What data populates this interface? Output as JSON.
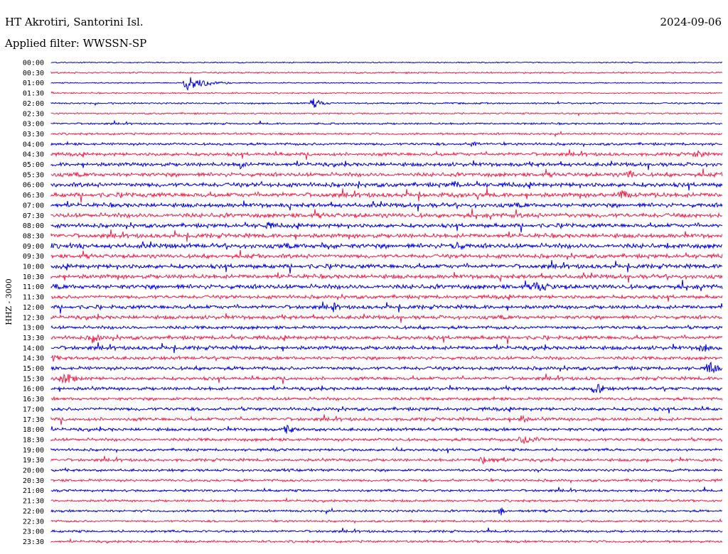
{
  "header": {
    "station": "HT Akrotiri, Santorini Isl.",
    "date": "2024-09-06",
    "filter": "Applied filter: WWSSN-SP"
  },
  "chart_data": {
    "type": "line",
    "title": "HT Akrotiri, Santorini Isl.",
    "subtitle": "Applied filter: WWSSN-SP",
    "ylabel": "HHZ - 3000",
    "xlabel": "",
    "grid": false,
    "trace_colors": [
      "#0000e0",
      "#f0204a"
    ],
    "rows": [
      {
        "label": "00:00",
        "color": "#0000e0",
        "activity": 0.05,
        "events": []
      },
      {
        "label": "00:30",
        "color": "#f0204a",
        "activity": 0.15,
        "events": []
      },
      {
        "label": "01:00",
        "color": "#0000e0",
        "activity": 0.05,
        "events": [
          {
            "t": 0.2,
            "amp": 1.0,
            "dur": 0.07
          }
        ]
      },
      {
        "label": "01:30",
        "color": "#f0204a",
        "activity": 0.1,
        "events": [
          {
            "t": 0.0,
            "amp": 0.3,
            "dur": 0.01
          }
        ]
      },
      {
        "label": "02:00",
        "color": "#0000e0",
        "activity": 0.15,
        "events": [
          {
            "t": 0.39,
            "amp": 0.7,
            "dur": 0.03
          }
        ]
      },
      {
        "label": "02:30",
        "color": "#f0204a",
        "activity": 0.15,
        "events": []
      },
      {
        "label": "03:00",
        "color": "#0000e0",
        "activity": 0.2,
        "events": []
      },
      {
        "label": "03:30",
        "color": "#f0204a",
        "activity": 0.25,
        "events": []
      },
      {
        "label": "04:00",
        "color": "#0000e0",
        "activity": 0.35,
        "events": [
          {
            "t": 0.63,
            "amp": 0.5,
            "dur": 0.02
          }
        ]
      },
      {
        "label": "04:30",
        "color": "#f0204a",
        "activity": 0.5,
        "events": [
          {
            "t": 0.96,
            "amp": 0.7,
            "dur": 0.03
          }
        ]
      },
      {
        "label": "05:00",
        "color": "#0000e0",
        "activity": 0.6,
        "events": [
          {
            "t": 0.28,
            "amp": 0.8,
            "dur": 0.02
          }
        ]
      },
      {
        "label": "05:30",
        "color": "#f0204a",
        "activity": 0.65,
        "events": [
          {
            "t": 0.86,
            "amp": 0.9,
            "dur": 0.02
          }
        ]
      },
      {
        "label": "06:00",
        "color": "#0000e0",
        "activity": 0.7,
        "events": [
          {
            "t": 0.6,
            "amp": 0.8,
            "dur": 0.02
          }
        ]
      },
      {
        "label": "06:30",
        "color": "#f0204a",
        "activity": 0.75,
        "events": [
          {
            "t": 0.85,
            "amp": 0.9,
            "dur": 0.02
          }
        ]
      },
      {
        "label": "07:00",
        "color": "#0000e0",
        "activity": 0.7,
        "events": []
      },
      {
        "label": "07:30",
        "color": "#f0204a",
        "activity": 0.75,
        "events": []
      },
      {
        "label": "08:00",
        "color": "#0000e0",
        "activity": 0.65,
        "events": [
          {
            "t": 0.32,
            "amp": 0.7,
            "dur": 0.03
          }
        ]
      },
      {
        "label": "08:30",
        "color": "#f0204a",
        "activity": 0.7,
        "events": []
      },
      {
        "label": "09:00",
        "color": "#0000e0",
        "activity": 0.8,
        "events": [
          {
            "t": 0.6,
            "amp": 0.9,
            "dur": 0.03
          }
        ]
      },
      {
        "label": "09:30",
        "color": "#f0204a",
        "activity": 0.65,
        "events": []
      },
      {
        "label": "10:00",
        "color": "#0000e0",
        "activity": 0.7,
        "events": []
      },
      {
        "label": "10:30",
        "color": "#f0204a",
        "activity": 0.7,
        "events": []
      },
      {
        "label": "11:00",
        "color": "#0000e0",
        "activity": 0.75,
        "events": [
          {
            "t": 0.72,
            "amp": 0.8,
            "dur": 0.06
          }
        ]
      },
      {
        "label": "11:30",
        "color": "#f0204a",
        "activity": 0.55,
        "events": []
      },
      {
        "label": "12:00",
        "color": "#0000e0",
        "activity": 0.6,
        "events": [
          {
            "t": 0.42,
            "amp": 0.7,
            "dur": 0.02
          }
        ]
      },
      {
        "label": "12:30",
        "color": "#f0204a",
        "activity": 0.6,
        "events": []
      },
      {
        "label": "13:00",
        "color": "#0000e0",
        "activity": 0.5,
        "events": []
      },
      {
        "label": "13:30",
        "color": "#f0204a",
        "activity": 0.6,
        "events": [
          {
            "t": 0.06,
            "amp": 0.8,
            "dur": 0.03
          }
        ]
      },
      {
        "label": "14:00",
        "color": "#0000e0",
        "activity": 0.6,
        "events": [
          {
            "t": 0.97,
            "amp": 0.9,
            "dur": 0.02
          }
        ]
      },
      {
        "label": "14:30",
        "color": "#f0204a",
        "activity": 0.5,
        "events": [
          {
            "t": 0.0,
            "amp": 0.8,
            "dur": 0.02
          }
        ]
      },
      {
        "label": "15:00",
        "color": "#0000e0",
        "activity": 0.55,
        "events": [
          {
            "t": 0.98,
            "amp": 1.0,
            "dur": 0.03
          }
        ]
      },
      {
        "label": "15:30",
        "color": "#f0204a",
        "activity": 0.5,
        "events": [
          {
            "t": 0.02,
            "amp": 0.9,
            "dur": 0.04
          }
        ]
      },
      {
        "label": "16:00",
        "color": "#0000e0",
        "activity": 0.5,
        "events": [
          {
            "t": 0.81,
            "amp": 1.0,
            "dur": 0.03
          }
        ]
      },
      {
        "label": "16:30",
        "color": "#f0204a",
        "activity": 0.45,
        "events": []
      },
      {
        "label": "17:00",
        "color": "#0000e0",
        "activity": 0.5,
        "events": []
      },
      {
        "label": "17:30",
        "color": "#f0204a",
        "activity": 0.5,
        "events": [
          {
            "t": 0.7,
            "amp": 0.8,
            "dur": 0.02
          }
        ]
      },
      {
        "label": "18:00",
        "color": "#0000e0",
        "activity": 0.45,
        "events": [
          {
            "t": 0.35,
            "amp": 0.7,
            "dur": 0.03
          }
        ]
      },
      {
        "label": "18:30",
        "color": "#f0204a",
        "activity": 0.45,
        "events": [
          {
            "t": 0.7,
            "amp": 0.6,
            "dur": 0.08
          }
        ]
      },
      {
        "label": "19:00",
        "color": "#0000e0",
        "activity": 0.35,
        "events": []
      },
      {
        "label": "19:30",
        "color": "#f0204a",
        "activity": 0.4,
        "events": [
          {
            "t": 0.64,
            "amp": 0.6,
            "dur": 0.08
          }
        ]
      },
      {
        "label": "20:00",
        "color": "#0000e0",
        "activity": 0.35,
        "events": []
      },
      {
        "label": "20:30",
        "color": "#f0204a",
        "activity": 0.35,
        "events": []
      },
      {
        "label": "21:00",
        "color": "#0000e0",
        "activity": 0.3,
        "events": []
      },
      {
        "label": "21:30",
        "color": "#f0204a",
        "activity": 0.3,
        "events": []
      },
      {
        "label": "22:00",
        "color": "#0000e0",
        "activity": 0.3,
        "events": [
          {
            "t": 0.67,
            "amp": 0.8,
            "dur": 0.01
          }
        ]
      },
      {
        "label": "22:30",
        "color": "#f0204a",
        "activity": 0.25,
        "events": []
      },
      {
        "label": "23:00",
        "color": "#0000e0",
        "activity": 0.3,
        "events": []
      },
      {
        "label": "23:30",
        "color": "#f0204a",
        "activity": 0.3,
        "events": []
      }
    ]
  }
}
